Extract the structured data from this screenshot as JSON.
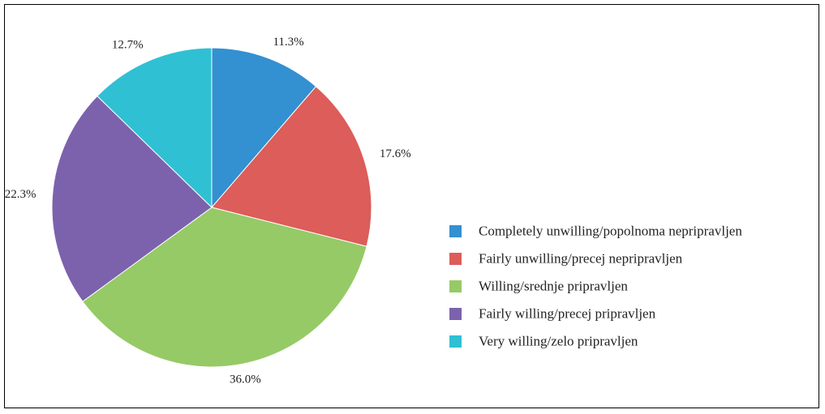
{
  "chart_data": {
    "type": "pie",
    "title": "",
    "slices": [
      {
        "label": "Completely unwilling/popolnoma nepripravljen",
        "value": 11.3,
        "value_label": "11.3%",
        "color": "#3390d1"
      },
      {
        "label": "Fairly unwilling/precej nepripravljen",
        "value": 17.6,
        "value_label": "17.6%",
        "color": "#dc5d59"
      },
      {
        "label": "Willing/srednje pripravljen",
        "value": 36.0,
        "value_label": "36.0%",
        "color": "#96ca66"
      },
      {
        "label": "Fairly willing/precej pripravljen",
        "value": 22.3,
        "value_label": "22.3%",
        "color": "#7c62ac"
      },
      {
        "label": "Very willing/zelo pripravljen",
        "value": 12.7,
        "value_label": "12.7%",
        "color": "#30c0d4"
      }
    ],
    "start_angle": "top",
    "direction": "clockwise",
    "legend_position": "right"
  }
}
